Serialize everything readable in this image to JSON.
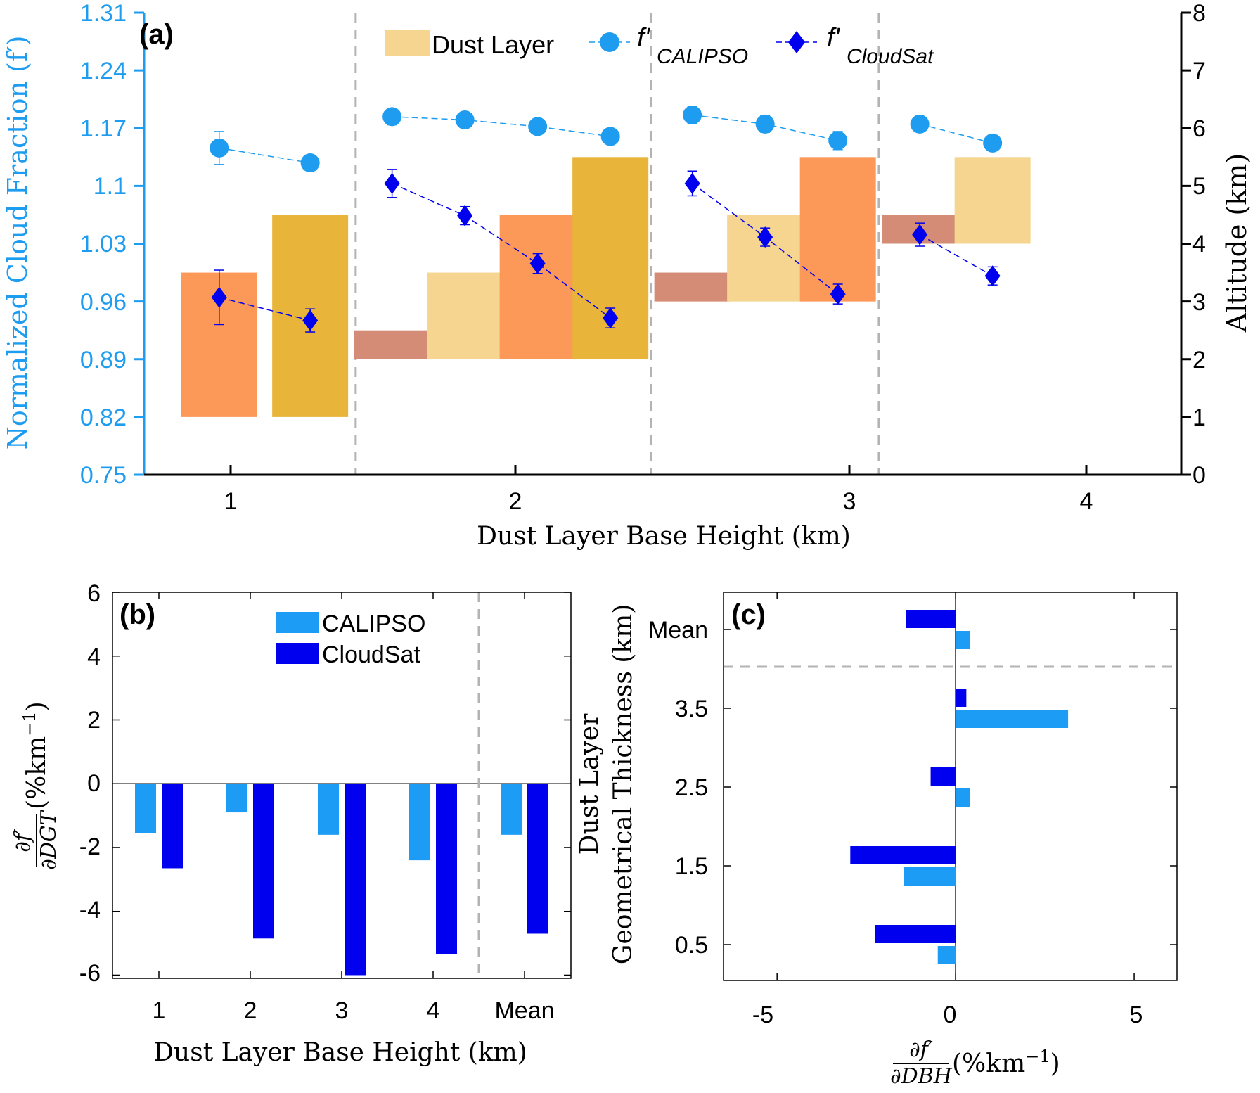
{
  "colors": {
    "calipso": "#1e9cef",
    "calipso_bar": "#1c9cf5",
    "cloudsat": "#0000ee",
    "dust_light": "#f5d590",
    "dust_orange": "#fc9858",
    "dust_gold": "#e8b43a",
    "dust_brown": "#d48c76",
    "grid_dash": "#b3b3b3",
    "axis_left": "#1e9cef",
    "axis": "#000000"
  },
  "panel_a": {
    "label": "(a)",
    "legend": {
      "dust": "Dust Layer",
      "calipso_prefix": "f'",
      "calipso_sub": "CALIPSO",
      "cloudsat_prefix": "f'",
      "cloudsat_sub": "CloudSat"
    },
    "ylabel_left": "Normalized Cloud Fraction (f′)",
    "ylabel_right": "Altitude (km)",
    "xlabel": "Dust Layer Base Height (km)",
    "left_ticks": [
      "0.75",
      "0.82",
      "0.89",
      "0.96",
      "1.03",
      "1.1",
      "1.17",
      "1.24",
      "1.31"
    ],
    "right_ticks": [
      "0",
      "1",
      "2",
      "3",
      "4",
      "5",
      "6",
      "7",
      "8"
    ],
    "x_ticks": [
      "1",
      "2",
      "3",
      "4"
    ]
  },
  "panel_b": {
    "label": "(b)",
    "legend": [
      "CALIPSO",
      "CloudSat"
    ],
    "ylabel": "∂f′/∂DGT (%km⁻¹)",
    "ylabel_num": "∂f′",
    "ylabel_den": "∂DGT",
    "ylabel_unit": "(%km",
    "ylabel_exp": "−1",
    "ylabel_close": ")",
    "xlabel": "Dust Layer Base Height (km)",
    "y_ticks": [
      "6",
      "4",
      "2",
      "0",
      "-2",
      "-4",
      "-6"
    ],
    "x_ticks": [
      "1",
      "2",
      "3",
      "4",
      "Mean"
    ]
  },
  "panel_c": {
    "label": "(c)",
    "ylabel_line1": "Dust Layer",
    "ylabel_line2": "Geometrical Thickness (km)",
    "xlabel_num": "∂f′",
    "xlabel_den": "∂DBH",
    "xlabel_unit": "(%km",
    "xlabel_exp": "−1",
    "xlabel_close": ")",
    "y_ticks": [
      "Mean",
      "3.5",
      "2.5",
      "1.5",
      "0.5"
    ],
    "x_ticks": [
      "-5",
      "0",
      "5"
    ]
  },
  "chart_data": [
    {
      "type": "line",
      "panel": "a",
      "title": "(a)",
      "xlabel": "Dust Layer Base Height (km)",
      "ylabel": "Normalized Cloud Fraction (f′)",
      "y2label": "Altitude (km)",
      "ylim": [
        0.75,
        1.31
      ],
      "y2lim": [
        0,
        8
      ],
      "groups": [
        {
          "base_height": "1",
          "slots": [
            0.78,
            1.18
          ]
        },
        {
          "base_height": "2",
          "slots": [
            1.54,
            1.86,
            2.18,
            2.5
          ]
        },
        {
          "base_height": "3",
          "slots": [
            2.86,
            3.18,
            3.5
          ]
        },
        {
          "base_height": "4",
          "slots": [
            3.86,
            4.18
          ]
        }
      ],
      "dust_layers": [
        {
          "group": 0,
          "slot": 0,
          "bottom_km": 1.0,
          "top_km": 3.5,
          "color": "dust_orange"
        },
        {
          "group": 0,
          "slot": 1,
          "bottom_km": 1.0,
          "top_km": 4.5,
          "color": "dust_gold"
        },
        {
          "group": 1,
          "slot": 0,
          "bottom_km": 2.0,
          "top_km": 2.5,
          "color": "dust_brown"
        },
        {
          "group": 1,
          "slot": 1,
          "bottom_km": 2.0,
          "top_km": 3.5,
          "color": "dust_light"
        },
        {
          "group": 1,
          "slot": 2,
          "bottom_km": 2.0,
          "top_km": 4.5,
          "color": "dust_orange"
        },
        {
          "group": 1,
          "slot": 3,
          "bottom_km": 2.0,
          "top_km": 5.5,
          "color": "dust_gold"
        },
        {
          "group": 2,
          "slot": 0,
          "bottom_km": 3.0,
          "top_km": 3.5,
          "color": "dust_brown"
        },
        {
          "group": 2,
          "slot": 1,
          "bottom_km": 3.0,
          "top_km": 4.5,
          "color": "dust_light"
        },
        {
          "group": 2,
          "slot": 2,
          "bottom_km": 3.0,
          "top_km": 5.5,
          "color": "dust_orange"
        },
        {
          "group": 3,
          "slot": 0,
          "bottom_km": 4.0,
          "top_km": 4.5,
          "color": "dust_brown"
        },
        {
          "group": 3,
          "slot": 1,
          "bottom_km": 4.0,
          "top_km": 5.5,
          "color": "dust_light"
        }
      ],
      "series": [
        {
          "name": "f'CALIPSO",
          "marker": "circle",
          "groups": [
            {
              "values": [
                1.146,
                1.128
              ],
              "errors": [
                0.02,
                0.006
              ]
            },
            {
              "values": [
                1.184,
                1.18,
                1.172,
                1.16
              ],
              "errors": [
                0.01,
                0.008,
                0.008,
                0.009
              ]
            },
            {
              "values": [
                1.186,
                1.175,
                1.155
              ],
              "errors": [
                0.01,
                0.01,
                0.011
              ]
            },
            {
              "values": [
                1.175,
                1.152
              ],
              "errors": [
                0.006,
                0.009
              ]
            }
          ]
        },
        {
          "name": "f'CloudSat",
          "marker": "diamond",
          "groups": [
            {
              "values": [
                0.965,
                0.937
              ],
              "errors": [
                0.033,
                0.014
              ]
            },
            {
              "values": [
                1.103,
                1.064,
                1.006,
                0.94
              ],
              "errors": [
                0.017,
                0.011,
                0.012,
                0.012
              ]
            },
            {
              "values": [
                1.103,
                1.038,
                0.969
              ],
              "errors": [
                0.015,
                0.011,
                0.012
              ]
            },
            {
              "values": [
                1.041,
                0.991
              ],
              "errors": [
                0.014,
                0.011
              ]
            }
          ]
        }
      ]
    },
    {
      "type": "bar",
      "panel": "b",
      "title": "(b)",
      "categories": [
        "1",
        "2",
        "3",
        "4",
        "Mean"
      ],
      "xlabel": "Dust Layer Base Height (km)",
      "ylabel": "∂f′/∂DGT (%km⁻¹)",
      "ylim": [
        -6.1,
        6
      ],
      "series": [
        {
          "name": "CALIPSO",
          "values": [
            -1.55,
            -0.9,
            -1.6,
            -2.4,
            -1.6
          ]
        },
        {
          "name": "CloudSat",
          "values": [
            -2.65,
            -4.85,
            -6.0,
            -5.35,
            -4.7
          ]
        }
      ]
    },
    {
      "type": "bar",
      "panel": "c",
      "title": "(c)",
      "orientation": "horizontal",
      "categories": [
        "0.5",
        "1.5",
        "2.5",
        "3.5",
        "Mean"
      ],
      "xlabel": "∂f′/∂DBH (%km⁻¹)",
      "ylabel": "Dust Layer Geometrical Thickness (km)",
      "xlim": [
        -6.5,
        6.2
      ],
      "series": [
        {
          "name": "CALIPSO",
          "values": [
            -0.5,
            -1.45,
            0.4,
            3.15,
            0.4
          ]
        },
        {
          "name": "CloudSat",
          "values": [
            -2.25,
            -2.95,
            -0.7,
            0.3,
            -1.4
          ]
        }
      ]
    }
  ]
}
